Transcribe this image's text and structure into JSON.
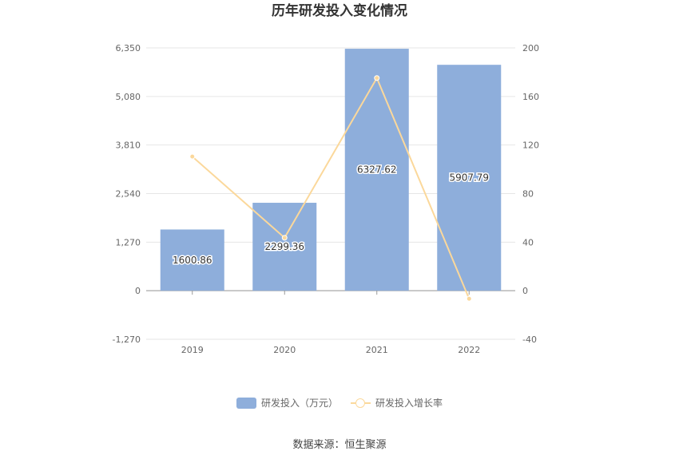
{
  "chart_data": {
    "type": "bar",
    "title": "历年研发投入变化情况",
    "categories": [
      "2019",
      "2020",
      "2021",
      "2022"
    ],
    "series": [
      {
        "name": "研发投入（万元）",
        "type": "bar",
        "axis": "left",
        "values": [
          1600.86,
          2299.36,
          6327.62,
          5907.79
        ],
        "labels": [
          "1600.86",
          "2299.36",
          "6327.62",
          "5907.79"
        ]
      },
      {
        "name": "研发投入增长率",
        "type": "line",
        "axis": "right",
        "values": [
          110.5,
          43.6,
          175.2,
          -6.6
        ]
      }
    ],
    "y_left": {
      "ylim": [
        -1270,
        6350
      ],
      "ticks": [
        6350,
        5080,
        3810,
        2540,
        1270,
        0,
        -1270
      ],
      "tick_labels": [
        "6,350",
        "5,080",
        "3,810",
        "2,540",
        "1,270",
        "0",
        "-1,270"
      ]
    },
    "y_right": {
      "ylim": [
        -40,
        200
      ],
      "ticks": [
        200,
        160,
        120,
        80,
        40,
        0,
        -40
      ],
      "tick_labels": [
        "200",
        "160",
        "120",
        "80",
        "40",
        "0",
        "-40"
      ]
    },
    "grid": true,
    "legend_position": "bottom",
    "colors": {
      "bar": "#8eaedb",
      "line": "#fbd89b"
    }
  },
  "source_text": "数据来源：恒生聚源"
}
